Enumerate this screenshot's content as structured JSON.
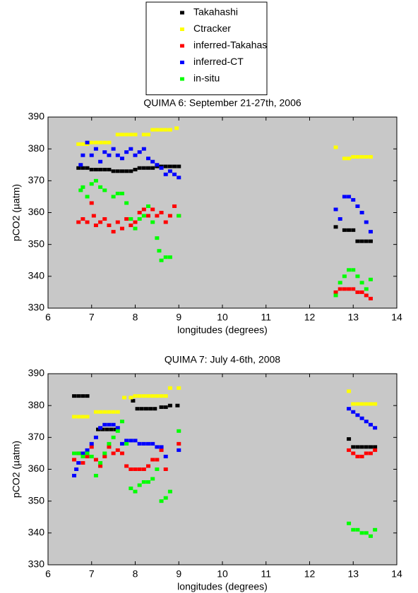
{
  "chart_data": [
    {
      "type": "scatter",
      "title": "QUIMA 6: September 21-27th, 2006",
      "x_label": "longitudes (degrees)",
      "y_label": "pCO2 (µatm)",
      "legend": "top",
      "background": "#c8c8c8",
      "xlim": [
        6,
        14
      ],
      "ylim": [
        330,
        390
      ],
      "xticks": [
        6,
        7,
        8,
        9,
        10,
        11,
        12,
        13,
        14
      ],
      "yticks": [
        330,
        340,
        350,
        360,
        370,
        380,
        390
      ],
      "series": [
        {
          "name": "Takahashi",
          "color": "#000000",
          "x": [
            6.7,
            6.8,
            6.9,
            7.0,
            7.1,
            7.2,
            7.3,
            7.4,
            7.5,
            7.6,
            7.7,
            7.8,
            7.9,
            8.0,
            8.1,
            8.2,
            8.3,
            8.4,
            8.5,
            8.6,
            8.7,
            8.8,
            8.9,
            9.0,
            12.6,
            12.8,
            12.9,
            13.0,
            13.1,
            13.2,
            13.3,
            13.4
          ],
          "values": [
            374,
            374,
            374,
            373.5,
            373.5,
            373.5,
            373.5,
            373.5,
            373,
            373,
            373,
            373,
            373,
            373.5,
            374,
            374,
            374,
            374,
            374.5,
            374.5,
            374.5,
            374.5,
            374.5,
            374.5,
            355.5,
            354.5,
            354.5,
            354.5,
            351,
            351,
            351,
            351
          ]
        },
        {
          "name": "Ctracker",
          "color": "#ffff00",
          "x": [
            6.7,
            6.8,
            6.9,
            7.0,
            7.1,
            7.2,
            7.3,
            7.4,
            7.6,
            7.7,
            7.8,
            7.9,
            8.0,
            8.2,
            8.3,
            8.4,
            8.5,
            8.6,
            8.7,
            8.8,
            8.95,
            12.6,
            12.8,
            12.9,
            13.0,
            13.1,
            13.2,
            13.3,
            13.4
          ],
          "values": [
            381.5,
            381.5,
            381.5,
            382,
            382,
            382,
            382,
            382,
            384.5,
            384.5,
            384.5,
            384.5,
            384.5,
            384.5,
            384.5,
            386,
            386,
            386,
            386,
            386,
            386.5,
            380.5,
            377,
            377,
            377.5,
            377.5,
            377.5,
            377.5,
            377.5
          ]
        },
        {
          "name": "inferred-Takahas",
          "color": "#ff0000",
          "x": [
            6.7,
            6.8,
            6.9,
            7.0,
            7.05,
            7.1,
            7.2,
            7.3,
            7.4,
            7.5,
            7.6,
            7.7,
            7.8,
            7.9,
            8.0,
            8.1,
            8.2,
            8.3,
            8.4,
            8.5,
            8.6,
            8.7,
            8.8,
            8.9,
            9.0,
            12.6,
            12.7,
            12.8,
            12.9,
            13.0,
            13.1,
            13.2,
            13.3,
            13.4
          ],
          "values": [
            357,
            358,
            357,
            363,
            359,
            356,
            357,
            358,
            356,
            354,
            357,
            355,
            358,
            356,
            357,
            360,
            361,
            359,
            361,
            359,
            360,
            357,
            359,
            362,
            359,
            335,
            336,
            336,
            336,
            336,
            335,
            335,
            334,
            333
          ]
        },
        {
          "name": "inferred-CT",
          "color": "#0000ff",
          "x": [
            6.75,
            6.8,
            6.9,
            7.0,
            7.1,
            7.2,
            7.3,
            7.4,
            7.5,
            7.6,
            7.7,
            7.8,
            7.9,
            8.0,
            8.1,
            8.2,
            8.3,
            8.4,
            8.5,
            8.6,
            8.7,
            8.8,
            8.9,
            9.0,
            12.6,
            12.7,
            12.8,
            12.9,
            13.0,
            13.1,
            13.2,
            13.3,
            13.4
          ],
          "values": [
            375,
            378,
            382,
            378,
            380,
            376,
            379,
            378,
            380,
            378,
            377,
            379,
            380,
            378,
            379,
            380,
            377,
            376,
            375,
            374,
            372,
            373,
            372,
            371,
            361,
            358,
            365,
            365,
            364,
            362,
            360,
            357,
            354
          ]
        },
        {
          "name": "in-situ",
          "color": "#00ff00",
          "x": [
            6.75,
            6.8,
            6.9,
            7.0,
            7.1,
            7.2,
            7.3,
            7.5,
            7.6,
            7.7,
            7.8,
            7.9,
            8.0,
            8.1,
            8.2,
            8.3,
            8.4,
            8.5,
            8.55,
            8.6,
            8.7,
            8.8,
            9.0,
            12.6,
            12.7,
            12.8,
            12.9,
            13.0,
            13.1,
            13.2,
            13.3,
            13.4
          ],
          "values": [
            367,
            368,
            365,
            369,
            370,
            368,
            367,
            365,
            366,
            366,
            363,
            358,
            355,
            358,
            359,
            362,
            357,
            352,
            348,
            345,
            346,
            346,
            359,
            334,
            338,
            340,
            342,
            342,
            340,
            338,
            336,
            339
          ]
        }
      ]
    },
    {
      "type": "scatter",
      "title": "QUIMA 7: July 4-6th, 2008",
      "x_label": "longitudes (degrees)",
      "y_label": "pCO2 (µatm)",
      "background": "#c8c8c8",
      "xlim": [
        6,
        14
      ],
      "ylim": [
        330,
        390
      ],
      "xticks": [
        6,
        7,
        8,
        9,
        10,
        11,
        12,
        13,
        14
      ],
      "yticks": [
        330,
        340,
        350,
        360,
        370,
        380,
        390
      ],
      "series": [
        {
          "color": "#000000",
          "x": [
            6.6,
            6.7,
            6.8,
            6.9,
            7.15,
            7.25,
            7.35,
            7.45,
            7.55,
            7.95,
            8.05,
            8.15,
            8.25,
            8.35,
            8.45,
            8.6,
            8.7,
            8.8,
            8.97,
            12.9,
            13.0,
            13.1,
            13.2,
            13.3,
            13.4,
            13.5
          ],
          "values": [
            383,
            383,
            383,
            383,
            372.5,
            372.5,
            372.5,
            372.5,
            372.5,
            381.5,
            379,
            379,
            379,
            379,
            379,
            379.5,
            379.5,
            380,
            380,
            369.5,
            367,
            367,
            367,
            367,
            367,
            367
          ]
        },
        {
          "color": "#ffff00",
          "x": [
            6.6,
            6.7,
            6.8,
            6.9,
            7.1,
            7.2,
            7.3,
            7.4,
            7.5,
            7.6,
            7.75,
            7.9,
            8.0,
            8.1,
            8.2,
            8.3,
            8.4,
            8.5,
            8.6,
            8.7,
            8.8,
            9.0,
            12.9,
            13.0,
            13.1,
            13.2,
            13.3,
            13.4,
            13.5
          ],
          "values": [
            376.5,
            376.5,
            376.5,
            376.5,
            378,
            378,
            378,
            378,
            378,
            378,
            382.5,
            382.5,
            383,
            383,
            383,
            383,
            383,
            383,
            383,
            383,
            385.5,
            385.5,
            384.5,
            380.5,
            380.5,
            380.5,
            380.5,
            380.5,
            380.5
          ]
        },
        {
          "color": "#ff0000",
          "x": [
            6.6,
            6.7,
            6.8,
            6.9,
            7.0,
            7.1,
            7.2,
            7.3,
            7.4,
            7.5,
            7.6,
            7.7,
            7.8,
            7.9,
            8.0,
            8.1,
            8.2,
            8.3,
            8.4,
            8.5,
            8.6,
            8.7,
            9.0,
            12.9,
            13.0,
            13.1,
            13.2,
            13.3,
            13.4,
            13.5
          ],
          "values": [
            363,
            365,
            362,
            364,
            367,
            363,
            361,
            364,
            367,
            365,
            366,
            365,
            361,
            360,
            360,
            360,
            360,
            361,
            363,
            363,
            366,
            360,
            368,
            366,
            365,
            364,
            364,
            365,
            365,
            366
          ]
        },
        {
          "color": "#0000ff",
          "x": [
            6.6,
            6.65,
            6.7,
            6.8,
            6.9,
            7.0,
            7.1,
            7.2,
            7.3,
            7.4,
            7.5,
            7.6,
            7.7,
            7.8,
            7.9,
            8.0,
            8.1,
            8.2,
            8.3,
            8.4,
            8.5,
            8.6,
            8.7,
            9.0,
            12.9,
            13.0,
            13.1,
            13.2,
            13.3,
            13.4,
            13.5
          ],
          "values": [
            358,
            360,
            362,
            365,
            366,
            368,
            370,
            373,
            374,
            374,
            374,
            373,
            368,
            369,
            369,
            369,
            368,
            368,
            368,
            368,
            367,
            367,
            364,
            366,
            379,
            378,
            377,
            376,
            375,
            374,
            373
          ]
        },
        {
          "color": "#00ff00",
          "x": [
            6.6,
            6.7,
            6.8,
            6.9,
            7.0,
            7.1,
            7.2,
            7.3,
            7.4,
            7.5,
            7.6,
            7.7,
            7.8,
            7.9,
            8.0,
            8.1,
            8.2,
            8.3,
            8.4,
            8.5,
            8.6,
            8.7,
            8.8,
            9.0,
            12.9,
            13.0,
            13.1,
            13.2,
            13.3,
            13.4,
            13.5
          ],
          "values": [
            365,
            365,
            364,
            365,
            364,
            358,
            362,
            365,
            368,
            370,
            372,
            375,
            368,
            354,
            353,
            355,
            356,
            356,
            357,
            360,
            350,
            351,
            353,
            372,
            343,
            341,
            341,
            340,
            340,
            339,
            341
          ]
        }
      ]
    }
  ]
}
